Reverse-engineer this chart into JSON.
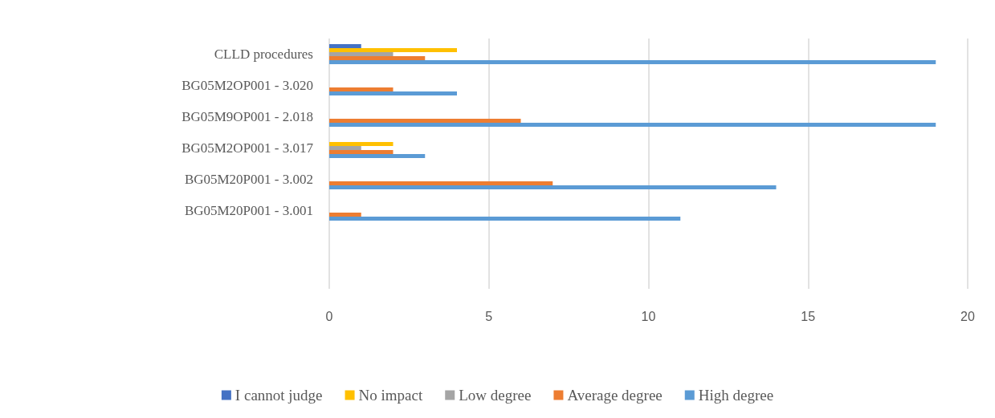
{
  "chart_data": {
    "type": "bar",
    "orientation": "horizontal",
    "categories": [
      "CLLD procedures",
      "BG05M2OP001 - 3.020",
      "BG05M9OP001 - 2.018",
      "BG05M2OP001 - 3.017",
      "BG05M20P001 - 3.002",
      "BG05M20P001 - 3.001",
      null,
      null
    ],
    "series": [
      {
        "name": "I cannot judge",
        "color": "#4472c4",
        "values": [
          1,
          null,
          null,
          null,
          null,
          null,
          null,
          null
        ]
      },
      {
        "name": "No impact",
        "color": "#ffc000",
        "values": [
          4,
          null,
          null,
          2,
          null,
          null,
          null,
          null
        ]
      },
      {
        "name": "Low degree",
        "color": "#a5a5a5",
        "values": [
          2,
          null,
          null,
          1,
          null,
          null,
          null,
          null
        ]
      },
      {
        "name": "Average degree",
        "color": "#ed7d31",
        "values": [
          3,
          2,
          6,
          2,
          7,
          1,
          null,
          null
        ]
      },
      {
        "name": "High degree",
        "color": "#5b9bd5",
        "values": [
          19,
          4,
          19,
          3,
          14,
          11,
          null,
          null
        ]
      }
    ],
    "xlim": [
      0,
      20
    ],
    "xticks": [
      0,
      5,
      10,
      15,
      20
    ],
    "grid": "x",
    "legend": "bottom"
  }
}
